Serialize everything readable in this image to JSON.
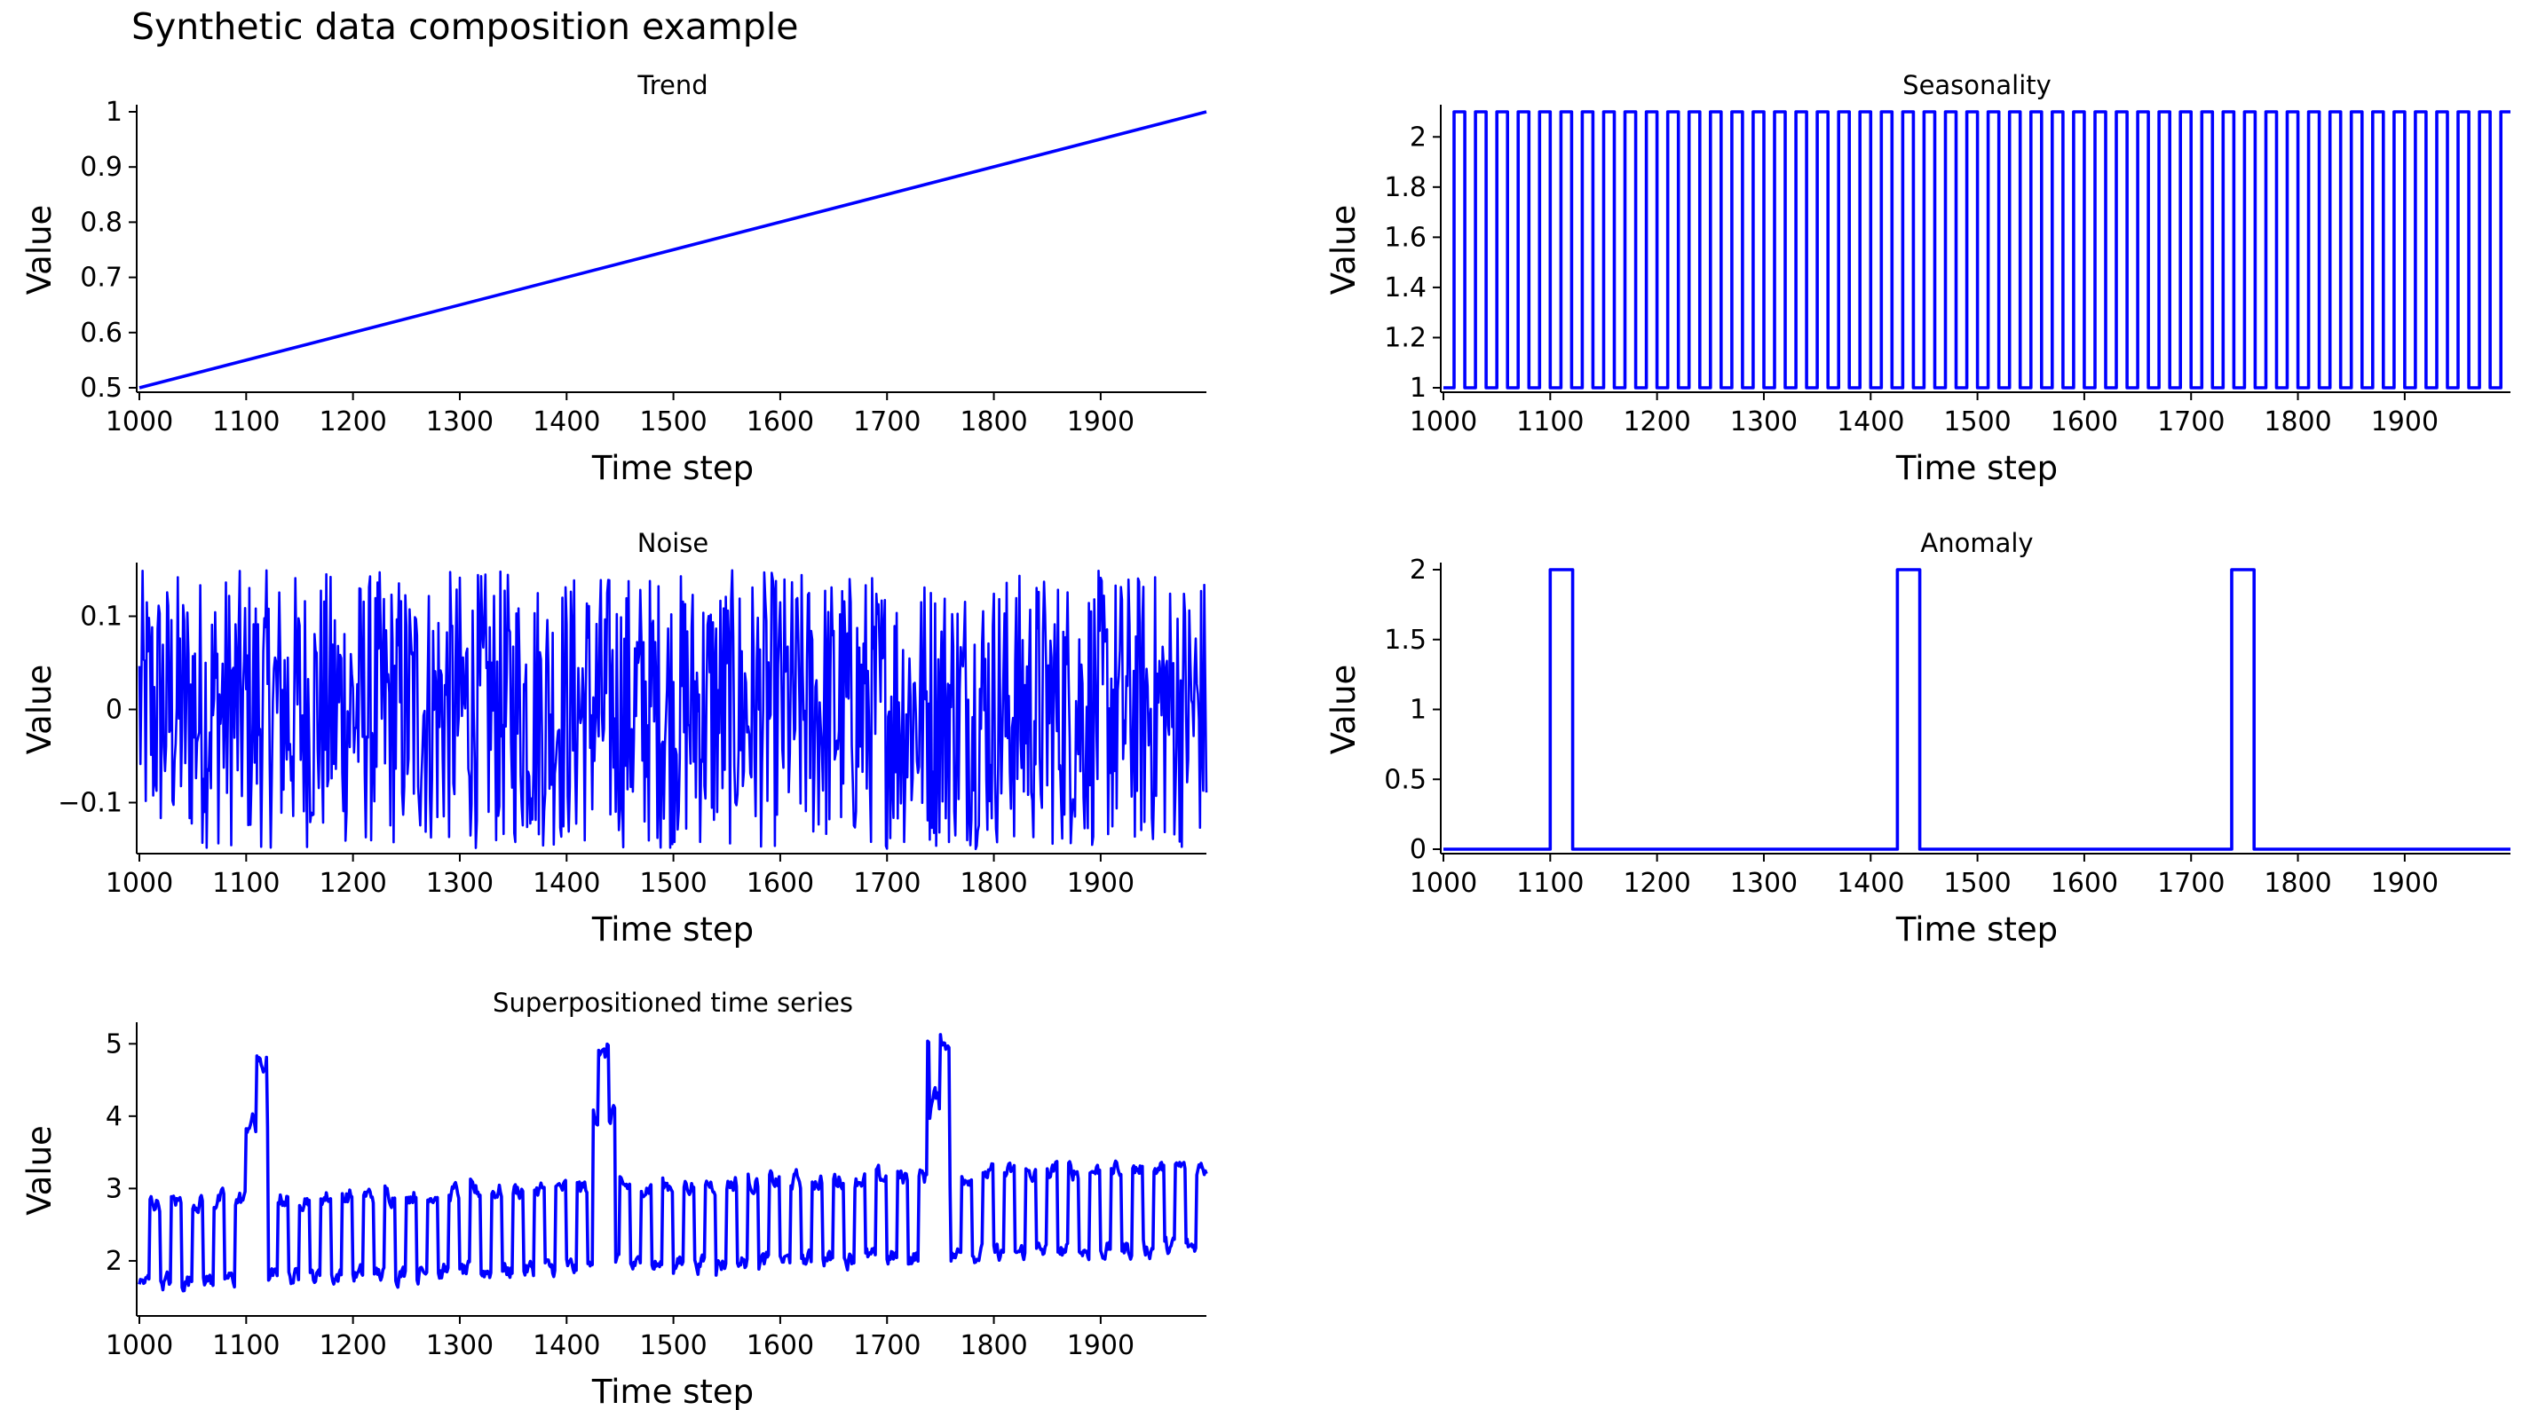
{
  "figure": {
    "title": "Synthetic data composition example"
  },
  "colors": {
    "line": "#0000ff",
    "axis": "#000000"
  },
  "chart_data": [
    {
      "id": "trend",
      "type": "line",
      "title": "Trend",
      "xlabel": "Time step",
      "ylabel": "Value",
      "xlim": [
        1000,
        1999
      ],
      "ylim": [
        0.5,
        1.0
      ],
      "xticks": [
        1000,
        1100,
        1200,
        1300,
        1400,
        1500,
        1600,
        1700,
        1800,
        1900
      ],
      "xtick_labels": [
        "1000",
        "1100",
        "1200",
        "1300",
        "1400",
        "1500",
        "1600",
        "1700",
        "1800",
        "1900"
      ],
      "yticks": [
        0.5,
        0.6,
        0.7,
        0.8,
        0.9,
        1.0
      ],
      "ytick_labels": [
        "0.5",
        "0.6",
        "0.7",
        "0.8",
        "0.9",
        "1"
      ],
      "series": [
        {
          "name": "trend",
          "x": [
            1000,
            1999
          ],
          "y": [
            0.5,
            1.0
          ]
        }
      ]
    },
    {
      "id": "seasonality",
      "type": "line",
      "title": "Seasonality",
      "xlabel": "Time step",
      "ylabel": "Value",
      "xlim": [
        1000,
        1999
      ],
      "ylim": [
        1.0,
        2.1
      ],
      "xticks": [
        1000,
        1100,
        1200,
        1300,
        1400,
        1500,
        1600,
        1700,
        1800,
        1900
      ],
      "xtick_labels": [
        "1000",
        "1100",
        "1200",
        "1300",
        "1400",
        "1500",
        "1600",
        "1700",
        "1800",
        "1900"
      ],
      "yticks": [
        1,
        1.2,
        1.4,
        1.6,
        1.8,
        2
      ],
      "ytick_labels": [
        "1",
        "1.2",
        "1.4",
        "1.6",
        "1.8",
        "2"
      ],
      "series": [
        {
          "name": "seasonality",
          "pattern": "square wave",
          "low": 1.0,
          "high": 2.1,
          "period": 20,
          "high_duration": 10,
          "start": 1000,
          "end": 1999
        }
      ]
    },
    {
      "id": "noise",
      "type": "line",
      "title": "Noise",
      "xlabel": "Time step",
      "ylabel": "Value",
      "xlim": [
        1000,
        1999
      ],
      "ylim": [
        -0.15,
        0.15
      ],
      "xticks": [
        1000,
        1100,
        1200,
        1300,
        1400,
        1500,
        1600,
        1700,
        1800,
        1900
      ],
      "xtick_labels": [
        "1000",
        "1100",
        "1200",
        "1300",
        "1400",
        "1500",
        "1600",
        "1700",
        "1800",
        "1900"
      ],
      "yticks": [
        -0.1,
        0,
        0.1
      ],
      "ytick_labels": [
        "−0.1",
        "0",
        "0.1"
      ],
      "series": [
        {
          "name": "noise",
          "pattern": "uniform random noise",
          "min": -0.15,
          "max": 0.15,
          "start": 1000,
          "end": 1999
        }
      ]
    },
    {
      "id": "anomaly",
      "type": "line",
      "title": "Anomaly",
      "xlabel": "Time step",
      "ylabel": "Value",
      "xlim": [
        1000,
        1999
      ],
      "ylim": [
        0,
        2
      ],
      "xticks": [
        1000,
        1100,
        1200,
        1300,
        1400,
        1500,
        1600,
        1700,
        1800,
        1900
      ],
      "xtick_labels": [
        "1000",
        "1100",
        "1200",
        "1300",
        "1400",
        "1500",
        "1600",
        "1700",
        "1800",
        "1900"
      ],
      "yticks": [
        0,
        0.5,
        1,
        1.5,
        2
      ],
      "ytick_labels": [
        "0",
        "0.5",
        "1",
        "1.5",
        "2"
      ],
      "series": [
        {
          "name": "anomaly",
          "pattern": "rectangular pulses",
          "baseline": 0,
          "height": 2,
          "pulses": [
            [
              1100,
              1120
            ],
            [
              1425,
              1445
            ],
            [
              1738,
              1758
            ]
          ]
        }
      ]
    },
    {
      "id": "superposition",
      "type": "line",
      "title": "Superpositioned time series",
      "xlabel": "Time step",
      "ylabel": "Value",
      "xlim": [
        1000,
        1999
      ],
      "ylim": [
        1.3,
        5.2
      ],
      "xticks": [
        1000,
        1100,
        1200,
        1300,
        1400,
        1500,
        1600,
        1700,
        1800,
        1900
      ],
      "xtick_labels": [
        "1000",
        "1100",
        "1200",
        "1300",
        "1400",
        "1500",
        "1600",
        "1700",
        "1800",
        "1900"
      ],
      "yticks": [
        2,
        3,
        4,
        5
      ],
      "ytick_labels": [
        "2",
        "3",
        "4",
        "5"
      ],
      "series": [
        {
          "name": "superposition",
          "pattern": "trend + seasonality + noise + anomaly",
          "components": [
            "trend",
            "seasonality",
            "noise",
            "anomaly"
          ]
        }
      ]
    }
  ]
}
